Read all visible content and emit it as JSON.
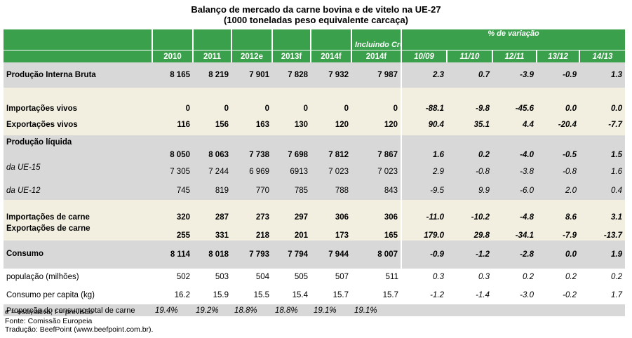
{
  "title": {
    "line1": "Balanço de mercado da carne bovina e de vitelo na UE-27",
    "line2": "(1000 toneladas peso equivalente carcaça)"
  },
  "header": {
    "including_croatia": "Incluindo Croácia",
    "variation_label": "% de variação",
    "columns": [
      "2010",
      "2011",
      "2012e",
      "2013f",
      "2014f",
      "2014f",
      "10/09",
      "11/10",
      "12/11",
      "13/12",
      "14/13"
    ]
  },
  "rows": [
    {
      "label": "Produção Interna Bruta",
      "values": [
        "8 165",
        "8 219",
        "7 901",
        "7 828",
        "7 932",
        "7 987",
        "2.3",
        "0.7",
        "-3.9",
        "-0.9",
        "1.3"
      ]
    },
    {
      "label": "Importações vivos",
      "values": [
        "0",
        "0",
        "0",
        "0",
        "0",
        "0",
        "-88.1",
        "-9.8",
        "-45.6",
        "0.0",
        "0.0"
      ]
    },
    {
      "label": "Exportações vivos",
      "values": [
        "116",
        "156",
        "163",
        "130",
        "120",
        "120",
        "90.4",
        "35.1",
        "4.4",
        "-20.4",
        "-7.7"
      ]
    },
    {
      "label": "Produção líquida",
      "values": [
        "8 050",
        "8 063",
        "7 738",
        "7 698",
        "7 812",
        "7 867",
        "1.6",
        "0.2",
        "-4.0",
        "-0.5",
        "1.5"
      ]
    },
    {
      "label": "da UE-15",
      "values": [
        "7 305",
        "7 244",
        "6 969",
        "6913",
        "7 023",
        "7 023",
        "2.9",
        "-0.8",
        "-3.8",
        "-0.8",
        "1.6"
      ]
    },
    {
      "label": "da UE-12",
      "values": [
        "745",
        "819",
        "770",
        "785",
        "788",
        "843",
        "-9.5",
        "9.9",
        "-6.0",
        "2.0",
        "0.4"
      ]
    },
    {
      "label": "Importações de carne",
      "values": [
        "320",
        "287",
        "273",
        "297",
        "306",
        "306",
        "-11.0",
        "-10.2",
        "-4.8",
        "8.6",
        "3.1"
      ]
    },
    {
      "label": "Exportações de carne",
      "values": [
        "255",
        "331",
        "218",
        "201",
        "173",
        "165",
        "179.0",
        "29.8",
        "-34.1",
        "-7.9",
        "-13.7"
      ]
    },
    {
      "label": "Consumo",
      "values": [
        "8 114",
        "8 018",
        "7 793",
        "7 794",
        "7 944",
        "8 007",
        "-0.9",
        "-1.2",
        "-2.8",
        "0.0",
        "1.9"
      ]
    },
    {
      "label": "população (milhões)",
      "values": [
        "502",
        "503",
        "504",
        "505",
        "507",
        "511",
        "0.3",
        "0.3",
        "0.2",
        "0.2",
        "0.2"
      ]
    },
    {
      "label": "Consumo per capita (kg)",
      "values": [
        "16.2",
        "15.9",
        "15.5",
        "15.4",
        "15.7",
        "15.7",
        "-1.2",
        "-1.4",
        "-3.0",
        "-0.2",
        "1.7"
      ]
    },
    {
      "label": "Proporção do consumo total de carne",
      "values": [
        "19.4%",
        "19.2%",
        "18.8%",
        "18.8%",
        "19.1%",
        "19.1%",
        "",
        "",
        "",
        "",
        ""
      ]
    }
  ],
  "notes": [
    "e = estimativa; f = previsão",
    "Fonte: Comissão Europeia",
    "Tradução: BeefPoint (www.beefpoint.com.br)."
  ]
}
